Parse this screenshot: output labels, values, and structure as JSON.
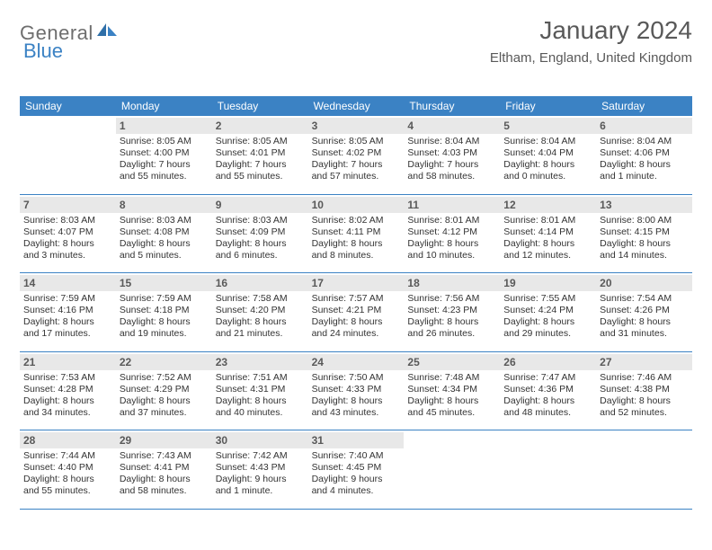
{
  "brand": {
    "part1": "General",
    "part2": "Blue"
  },
  "colors": {
    "accent": "#3b82c4",
    "daynum_bg": "#e8e8e8",
    "text_muted": "#595959",
    "text": "#333333",
    "bg": "#ffffff"
  },
  "title": "January 2024",
  "location": "Eltham, England, United Kingdom",
  "weekdays": [
    "Sunday",
    "Monday",
    "Tuesday",
    "Wednesday",
    "Thursday",
    "Friday",
    "Saturday"
  ],
  "weeks": [
    [
      {
        "n": "",
        "sunrise": "",
        "sunset": "",
        "daylight": ""
      },
      {
        "n": "1",
        "sunrise": "8:05 AM",
        "sunset": "4:00 PM",
        "daylight": "7 hours and 55 minutes."
      },
      {
        "n": "2",
        "sunrise": "8:05 AM",
        "sunset": "4:01 PM",
        "daylight": "7 hours and 55 minutes."
      },
      {
        "n": "3",
        "sunrise": "8:05 AM",
        "sunset": "4:02 PM",
        "daylight": "7 hours and 57 minutes."
      },
      {
        "n": "4",
        "sunrise": "8:04 AM",
        "sunset": "4:03 PM",
        "daylight": "7 hours and 58 minutes."
      },
      {
        "n": "5",
        "sunrise": "8:04 AM",
        "sunset": "4:04 PM",
        "daylight": "8 hours and 0 minutes."
      },
      {
        "n": "6",
        "sunrise": "8:04 AM",
        "sunset": "4:06 PM",
        "daylight": "8 hours and 1 minute."
      }
    ],
    [
      {
        "n": "7",
        "sunrise": "8:03 AM",
        "sunset": "4:07 PM",
        "daylight": "8 hours and 3 minutes."
      },
      {
        "n": "8",
        "sunrise": "8:03 AM",
        "sunset": "4:08 PM",
        "daylight": "8 hours and 5 minutes."
      },
      {
        "n": "9",
        "sunrise": "8:03 AM",
        "sunset": "4:09 PM",
        "daylight": "8 hours and 6 minutes."
      },
      {
        "n": "10",
        "sunrise": "8:02 AM",
        "sunset": "4:11 PM",
        "daylight": "8 hours and 8 minutes."
      },
      {
        "n": "11",
        "sunrise": "8:01 AM",
        "sunset": "4:12 PM",
        "daylight": "8 hours and 10 minutes."
      },
      {
        "n": "12",
        "sunrise": "8:01 AM",
        "sunset": "4:14 PM",
        "daylight": "8 hours and 12 minutes."
      },
      {
        "n": "13",
        "sunrise": "8:00 AM",
        "sunset": "4:15 PM",
        "daylight": "8 hours and 14 minutes."
      }
    ],
    [
      {
        "n": "14",
        "sunrise": "7:59 AM",
        "sunset": "4:16 PM",
        "daylight": "8 hours and 17 minutes."
      },
      {
        "n": "15",
        "sunrise": "7:59 AM",
        "sunset": "4:18 PM",
        "daylight": "8 hours and 19 minutes."
      },
      {
        "n": "16",
        "sunrise": "7:58 AM",
        "sunset": "4:20 PM",
        "daylight": "8 hours and 21 minutes."
      },
      {
        "n": "17",
        "sunrise": "7:57 AM",
        "sunset": "4:21 PM",
        "daylight": "8 hours and 24 minutes."
      },
      {
        "n": "18",
        "sunrise": "7:56 AM",
        "sunset": "4:23 PM",
        "daylight": "8 hours and 26 minutes."
      },
      {
        "n": "19",
        "sunrise": "7:55 AM",
        "sunset": "4:24 PM",
        "daylight": "8 hours and 29 minutes."
      },
      {
        "n": "20",
        "sunrise": "7:54 AM",
        "sunset": "4:26 PM",
        "daylight": "8 hours and 31 minutes."
      }
    ],
    [
      {
        "n": "21",
        "sunrise": "7:53 AM",
        "sunset": "4:28 PM",
        "daylight": "8 hours and 34 minutes."
      },
      {
        "n": "22",
        "sunrise": "7:52 AM",
        "sunset": "4:29 PM",
        "daylight": "8 hours and 37 minutes."
      },
      {
        "n": "23",
        "sunrise": "7:51 AM",
        "sunset": "4:31 PM",
        "daylight": "8 hours and 40 minutes."
      },
      {
        "n": "24",
        "sunrise": "7:50 AM",
        "sunset": "4:33 PM",
        "daylight": "8 hours and 43 minutes."
      },
      {
        "n": "25",
        "sunrise": "7:48 AM",
        "sunset": "4:34 PM",
        "daylight": "8 hours and 45 minutes."
      },
      {
        "n": "26",
        "sunrise": "7:47 AM",
        "sunset": "4:36 PM",
        "daylight": "8 hours and 48 minutes."
      },
      {
        "n": "27",
        "sunrise": "7:46 AM",
        "sunset": "4:38 PM",
        "daylight": "8 hours and 52 minutes."
      }
    ],
    [
      {
        "n": "28",
        "sunrise": "7:44 AM",
        "sunset": "4:40 PM",
        "daylight": "8 hours and 55 minutes."
      },
      {
        "n": "29",
        "sunrise": "7:43 AM",
        "sunset": "4:41 PM",
        "daylight": "8 hours and 58 minutes."
      },
      {
        "n": "30",
        "sunrise": "7:42 AM",
        "sunset": "4:43 PM",
        "daylight": "9 hours and 1 minute."
      },
      {
        "n": "31",
        "sunrise": "7:40 AM",
        "sunset": "4:45 PM",
        "daylight": "9 hours and 4 minutes."
      },
      {
        "n": "",
        "sunrise": "",
        "sunset": "",
        "daylight": ""
      },
      {
        "n": "",
        "sunrise": "",
        "sunset": "",
        "daylight": ""
      },
      {
        "n": "",
        "sunrise": "",
        "sunset": "",
        "daylight": ""
      }
    ]
  ],
  "labels": {
    "sunrise": "Sunrise:",
    "sunset": "Sunset:",
    "daylight": "Daylight:"
  }
}
